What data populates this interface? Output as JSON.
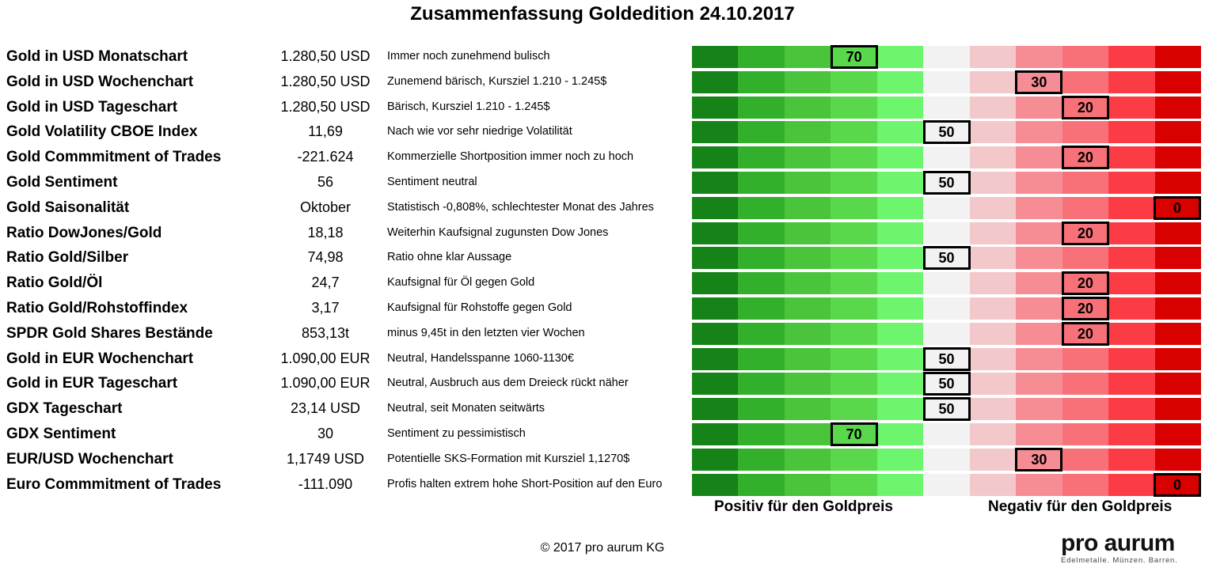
{
  "title": "Zusammenfassung Goldedition 24.10.2017",
  "axis_labels": {
    "positive": "Positiv für den Goldpreis",
    "negative": "Negativ für den Goldpreis"
  },
  "copyright": "© 2017 pro aurum KG",
  "logo": {
    "name": "pro aurum",
    "tagline": "Edelmetalle. Münzen. Barren."
  },
  "colors": {
    "segments": [
      "#168318",
      "#33b02b",
      "#49c43b",
      "#5ad84c",
      "#6cf56d",
      "#f2f2f2",
      "#f3c8ca",
      "#f68d94",
      "#f87178",
      "#fb3c44",
      "#d90000"
    ],
    "score_box_fill": {
      "70": "#5ad84c",
      "50": "#f2f2f2",
      "30": "#f68d94",
      "20": "#f87178",
      "0": "#d90000"
    }
  },
  "chart_data": {
    "type": "table",
    "scale": {
      "min": 0,
      "max": 100,
      "positive_side": "left",
      "negative_side": "right"
    },
    "rows": [
      {
        "name": "Gold in USD Monatschart",
        "value": "1.280,50 USD",
        "comment": "Immer noch zunehmend bulisch",
        "score": 70
      },
      {
        "name": "Gold in USD Wochenchart",
        "value": "1.280,50 USD",
        "comment": "Zunemend bärisch, Kursziel 1.210 - 1.245$",
        "score": 30
      },
      {
        "name": "Gold in USD Tageschart",
        "value": "1.280,50 USD",
        "comment": "Bärisch, Kursziel 1.210 - 1.245$",
        "score": 20
      },
      {
        "name": "Gold Volatility CBOE Index",
        "value": "11,69",
        "comment": "Nach wie vor sehr niedrige Volatilität",
        "score": 50
      },
      {
        "name": "Gold Commmitment of Trades",
        "value": "-221.624",
        "comment": "Kommerzielle Shortposition immer noch zu hoch",
        "score": 20
      },
      {
        "name": "Gold Sentiment",
        "value": "56",
        "comment": "Sentiment neutral",
        "score": 50
      },
      {
        "name": "Gold Saisonalität",
        "value": "Oktober",
        "comment": "Statistisch -0,808%, schlechtester Monat des Jahres",
        "score": 0
      },
      {
        "name": "Ratio DowJones/Gold",
        "value": "18,18",
        "comment": "Weiterhin Kaufsignal zugunsten Dow Jones",
        "score": 20
      },
      {
        "name": "Ratio Gold/Silber",
        "value": "74,98",
        "comment": "Ratio ohne klar Aussage",
        "score": 50
      },
      {
        "name": "Ratio Gold/Öl",
        "value": "24,7",
        "comment": "Kaufsignal für Öl gegen Gold",
        "score": 20
      },
      {
        "name": "Ratio Gold/Rohstoffindex",
        "value": "3,17",
        "comment": "Kaufsignal für Rohstoffe gegen Gold",
        "score": 20
      },
      {
        "name": "SPDR Gold Shares Bestände",
        "value": "853,13t",
        "comment": "minus 9,45t in den letzten vier Wochen",
        "score": 20
      },
      {
        "name": "Gold in EUR Wochenchart",
        "value": "1.090,00 EUR",
        "comment": "Neutral, Handelsspanne 1060-1130€",
        "score": 50
      },
      {
        "name": "Gold in EUR Tageschart",
        "value": "1.090,00 EUR",
        "comment": "Neutral, Ausbruch aus dem Dreieck rückt näher",
        "score": 50
      },
      {
        "name": "GDX Tageschart",
        "value": "23,14 USD",
        "comment": "Neutral, seit Monaten seitwärts",
        "score": 50
      },
      {
        "name": "GDX Sentiment",
        "value": "30",
        "comment": "Sentiment zu pessimistisch",
        "score": 70
      },
      {
        "name": "EUR/USD Wochenchart",
        "value": "1,1749 USD",
        "comment": "Potentielle SKS-Formation mit Kursziel 1,1270$",
        "score": 30
      },
      {
        "name": "Euro Commmitment of Trades",
        "value": "-111.090",
        "comment": "Profis halten extrem hohe Short-Position auf den Euro",
        "score": 0
      }
    ]
  }
}
